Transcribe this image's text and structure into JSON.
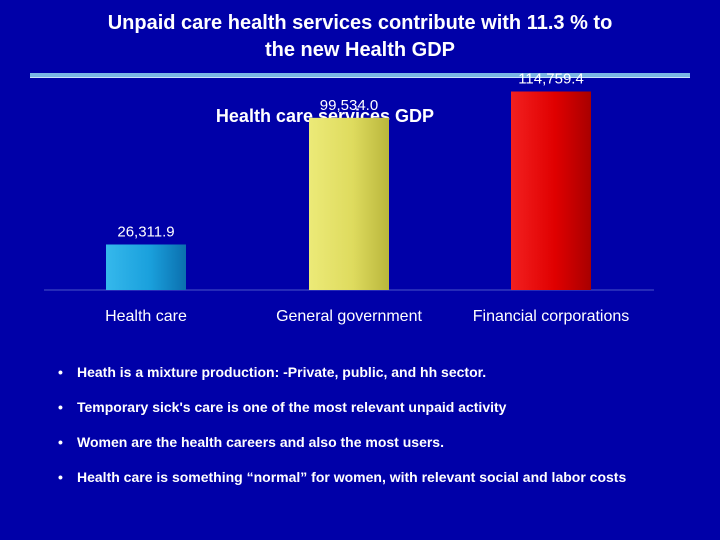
{
  "slide": {
    "title_line1": "Unpaid care health services contribute with 11.3 % to",
    "title_line2": "the new Health GDP"
  },
  "colors": {
    "background": "#0000a8",
    "title": "#ffffff",
    "divider": "#7ab6e6",
    "bar_health_care": "#1aa0dc",
    "bar_general_government": "#e0dc60",
    "bar_financial_corporations": "#e00000",
    "chart_text": "#ffffff"
  },
  "chart_data": {
    "type": "bar",
    "title": "Health care services GDP",
    "categories": [
      "Health care",
      "General government",
      "Financial corporations"
    ],
    "values": [
      26311.9,
      99534.0,
      114759.4
    ],
    "value_labels": [
      "26,311.9",
      "99,534.0",
      "114,759.4"
    ],
    "xlabel": "",
    "ylabel": "",
    "ylim": [
      0,
      130000
    ],
    "grid": false,
    "legend": "none"
  },
  "bullets": [
    {
      "mark": "•",
      "text": "Heath is a mixture production:  -Private, public, and hh sector."
    },
    {
      "mark": "•",
      "text": "Temporary sick's care is one of the most relevant unpaid activity"
    },
    {
      "mark": "•",
      "text": "Women are the health careers and also the most users."
    },
    {
      "mark": "•",
      "text": " Health care is something “normal” for women, with relevant  social and labor costs"
    }
  ]
}
